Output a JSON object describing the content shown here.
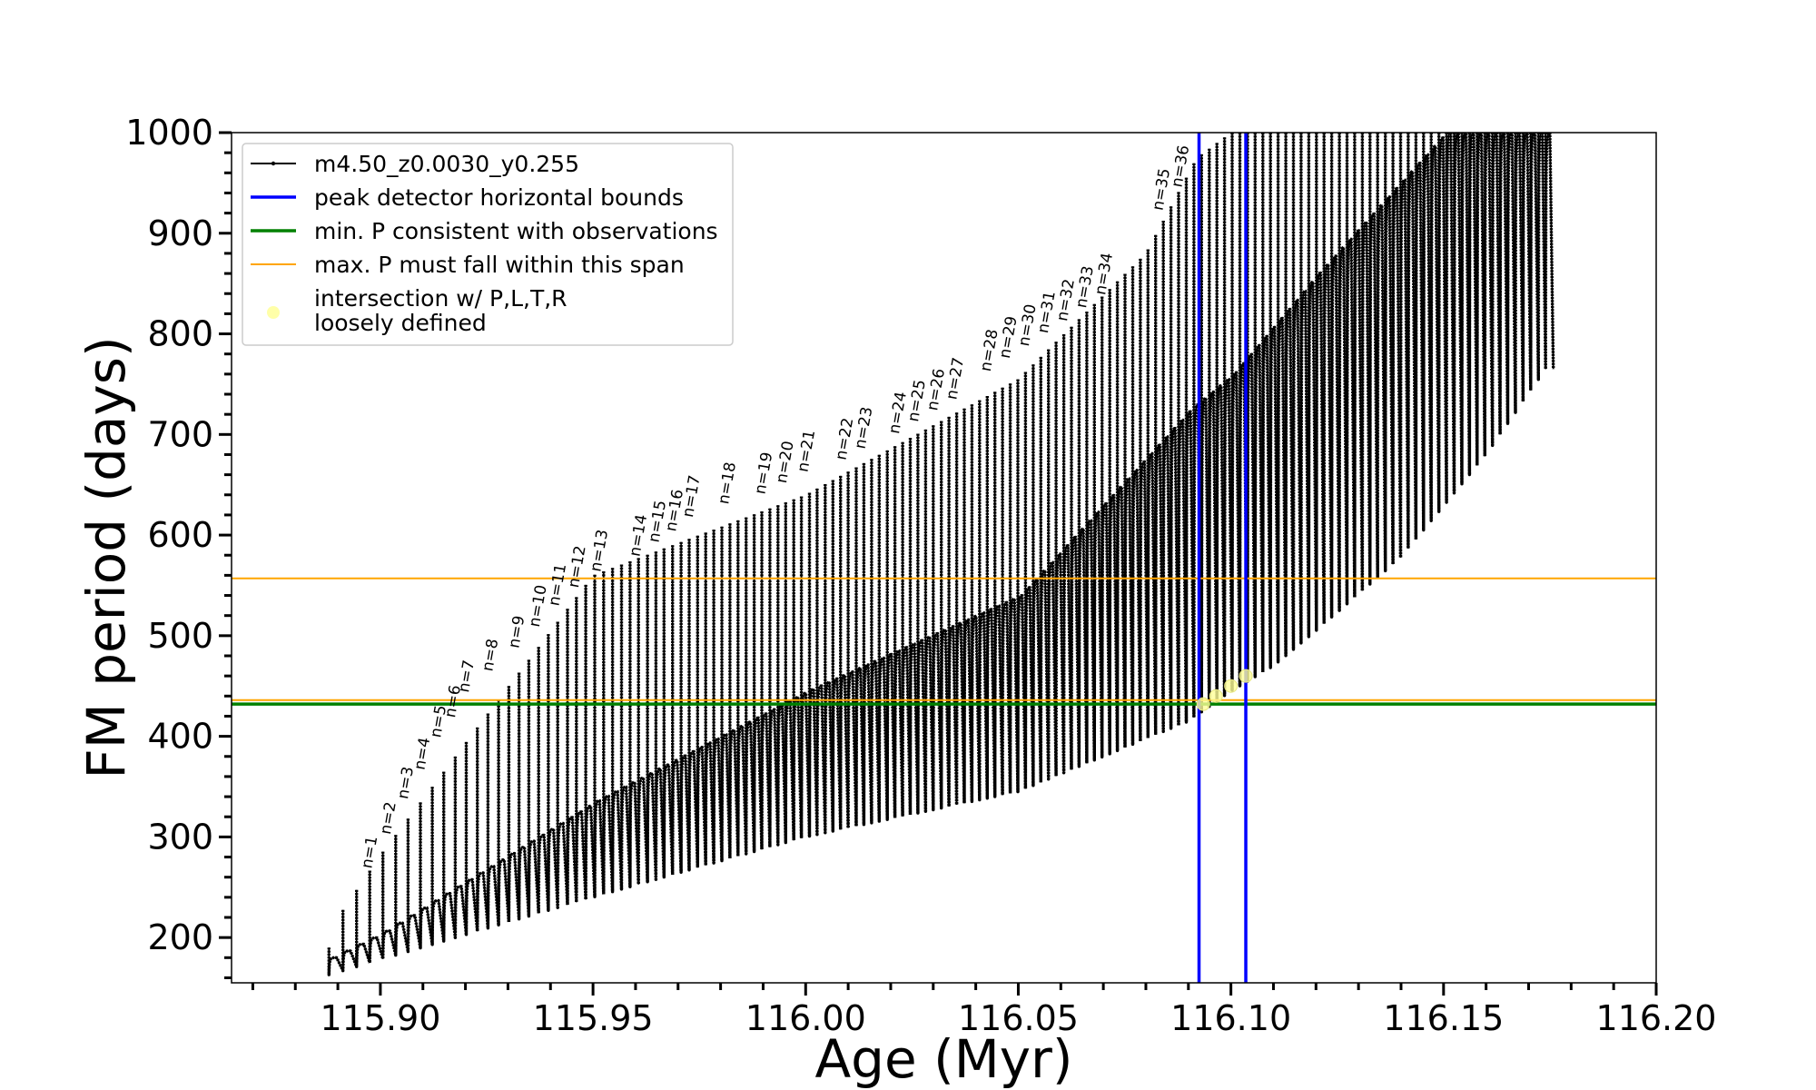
{
  "chart_data": {
    "type": "line",
    "xlabel": "Age (Myr)",
    "ylabel": "FM period (days)",
    "xlim": [
      115.865,
      116.2
    ],
    "ylim": [
      155,
      1000
    ],
    "x_ticks": [
      115.9,
      115.95,
      116.0,
      116.05,
      116.1,
      116.15,
      116.2
    ],
    "x_tick_labels": [
      "115.90",
      "115.95",
      "116.00",
      "116.05",
      "116.10",
      "116.15",
      "116.20"
    ],
    "x_minor_step": 0.01,
    "y_ticks": [
      200,
      300,
      400,
      500,
      600,
      700,
      800,
      900,
      1000
    ],
    "y_tick_labels": [
      "200",
      "300",
      "400",
      "500",
      "600",
      "700",
      "800",
      "900",
      "1000"
    ],
    "y_minor_step": 20,
    "grid": false,
    "legend_position": "top-left",
    "legend": [
      {
        "label": "m4.50_z0.0030_y0.255",
        "color": "#000000",
        "style": "line-marker"
      },
      {
        "label": "peak detector horizontal bounds",
        "color": "#0000ff",
        "style": "line"
      },
      {
        "label": "min. P consistent with observations",
        "color": "#008000",
        "style": "line"
      },
      {
        "label": "max. P must fall within this span",
        "color": "#ffa500",
        "style": "thin-line"
      },
      {
        "label": "intersection w/ P,L,T,R",
        "label_line2": "loosely defined",
        "color": "#ffff99",
        "style": "marker"
      }
    ],
    "series_track": {
      "name": "m4.50_z0.0030_y0.255",
      "color": "#000000",
      "pulse_start_ages": [
        115.8879,
        115.8912,
        115.8944,
        115.8975,
        115.9006,
        115.9036,
        115.9065,
        115.9094,
        115.9122,
        115.9149,
        115.9176,
        115.9202,
        115.9228,
        115.9253,
        115.9278,
        115.9302,
        115.9326,
        115.9349,
        115.9372,
        115.9395,
        115.9417,
        115.944,
        115.9461,
        115.9483,
        115.9504,
        115.9525,
        115.9546,
        115.9567,
        115.9587,
        115.9607,
        115.9628,
        115.9648,
        115.9667,
        115.9687,
        115.9707,
        115.9726,
        115.9746,
        115.9765,
        115.9784,
        115.9803,
        115.9822,
        115.9841,
        115.986,
        115.9879,
        115.9897,
        115.9916,
        115.9935,
        115.9953,
        115.9972,
        115.999,
        116.0009,
        116.0027,
        116.0046,
        116.0064,
        116.0082,
        116.01,
        116.0119,
        116.0137,
        116.0155,
        116.0173,
        116.0192,
        116.021,
        116.0228,
        116.0246,
        116.0264,
        116.0282,
        116.03,
        116.0319,
        116.0337,
        116.0355,
        116.0373,
        116.0391,
        116.0409,
        116.0427,
        116.0445,
        116.0463,
        116.0481,
        116.0499,
        116.0517,
        116.0535,
        116.0553,
        116.0571,
        116.0589,
        116.0607,
        116.0625,
        116.0643,
        116.0661,
        116.0679,
        116.0697,
        116.0715,
        116.0733,
        116.0751,
        116.0769,
        116.0787,
        116.0805,
        116.0823,
        116.0841,
        116.0859,
        116.0877,
        116.0895,
        116.0913,
        116.0931,
        116.0949,
        116.0967,
        116.0985,
        116.1003,
        116.1021,
        116.1039,
        116.1057,
        116.1075,
        116.1093,
        116.1111,
        116.1129,
        116.1147,
        116.1165,
        116.1183,
        116.1201,
        116.1219,
        116.1237,
        116.1255,
        116.1273,
        116.1291,
        116.1309,
        116.1327,
        116.1345,
        116.1363,
        116.1381,
        116.1399,
        116.1417,
        116.1435,
        116.1453,
        116.1471,
        116.1489,
        116.1507,
        116.1525,
        116.1543,
        116.1561,
        116.1579,
        116.1597,
        116.1615,
        116.1633,
        116.1651,
        116.1669,
        116.1687,
        116.1705,
        116.1723,
        116.174
      ],
      "envelope_low": [
        [
          115.888,
          163
        ],
        [
          115.9,
          178
        ],
        [
          115.95,
          240
        ],
        [
          116.0,
          300
        ],
        [
          116.05,
          345
        ],
        [
          116.09,
          415
        ],
        [
          116.1,
          445
        ],
        [
          116.11,
          470
        ],
        [
          116.12,
          505
        ],
        [
          116.14,
          578
        ],
        [
          116.16,
          680
        ],
        [
          116.174,
          765
        ]
      ],
      "envelope_mid": [
        [
          115.888,
          180
        ],
        [
          115.9,
          205
        ],
        [
          115.95,
          335
        ],
        [
          116.0,
          445
        ],
        [
          116.05,
          540
        ],
        [
          116.09,
          725
        ],
        [
          116.1,
          760
        ],
        [
          116.12,
          860
        ],
        [
          116.15,
          1000
        ]
      ],
      "peak_top": [
        [
          115.888,
          190
        ],
        [
          115.89,
          220
        ],
        [
          115.9,
          282
        ],
        [
          115.95,
          560
        ],
        [
          116.0,
          640
        ],
        [
          116.05,
          755
        ],
        [
          116.08,
          880
        ],
        [
          116.092,
          975
        ],
        [
          116.1,
          1000
        ],
        [
          116.175,
          1000
        ]
      ]
    },
    "vlines": [
      {
        "x": 116.0925,
        "color": "#0000ff"
      },
      {
        "x": 116.1035,
        "color": "#0000ff"
      }
    ],
    "hlines": [
      {
        "y": 432,
        "color": "#008000"
      },
      {
        "y": 436,
        "color": "#ffa500"
      },
      {
        "y": 557,
        "color": "#ffa500"
      }
    ],
    "intersection_points": [
      [
        116.0935,
        432
      ],
      [
        116.0965,
        440
      ],
      [
        116.1,
        450
      ],
      [
        116.1035,
        460
      ]
    ],
    "annotations": [
      {
        "text": "n=1",
        "x": 115.8979,
        "y": 268
      },
      {
        "text": "n=2",
        "x": 115.9023,
        "y": 302
      },
      {
        "text": "n=3",
        "x": 115.9064,
        "y": 337
      },
      {
        "text": "n=4",
        "x": 115.9103,
        "y": 366
      },
      {
        "text": "n=5",
        "x": 115.9141,
        "y": 398
      },
      {
        "text": "n=6",
        "x": 115.9175,
        "y": 418
      },
      {
        "text": "n=7",
        "x": 115.9207,
        "y": 443
      },
      {
        "text": "n=8",
        "x": 115.9263,
        "y": 464
      },
      {
        "text": "n=9",
        "x": 115.9325,
        "y": 487
      },
      {
        "text": "n=10",
        "x": 115.9373,
        "y": 508
      },
      {
        "text": "n=11",
        "x": 115.9419,
        "y": 529
      },
      {
        "text": "n=12",
        "x": 115.9465,
        "y": 547
      },
      {
        "text": "n=13",
        "x": 115.9517,
        "y": 563
      },
      {
        "text": "n=14",
        "x": 115.9609,
        "y": 578
      },
      {
        "text": "n=15",
        "x": 115.9654,
        "y": 592
      },
      {
        "text": "n=16",
        "x": 115.9694,
        "y": 603
      },
      {
        "text": "n=17",
        "x": 115.9734,
        "y": 617
      },
      {
        "text": "n=18",
        "x": 115.9818,
        "y": 630
      },
      {
        "text": "n=19",
        "x": 115.9904,
        "y": 640
      },
      {
        "text": "n=20",
        "x": 115.9954,
        "y": 651
      },
      {
        "text": "n=21",
        "x": 116.0004,
        "y": 662
      },
      {
        "text": "n=22",
        "x": 116.0094,
        "y": 674
      },
      {
        "text": "n=23",
        "x": 116.0139,
        "y": 685
      },
      {
        "text": "n=24",
        "x": 116.0219,
        "y": 700
      },
      {
        "text": "n=25",
        "x": 116.0264,
        "y": 712
      },
      {
        "text": "n=26",
        "x": 116.0309,
        "y": 723
      },
      {
        "text": "n=27",
        "x": 116.0354,
        "y": 734
      },
      {
        "text": "n=28",
        "x": 116.0434,
        "y": 762
      },
      {
        "text": "n=29",
        "x": 116.0479,
        "y": 775
      },
      {
        "text": "n=30",
        "x": 116.0524,
        "y": 787
      },
      {
        "text": "n=31",
        "x": 116.0569,
        "y": 800
      },
      {
        "text": "n=32",
        "x": 116.0614,
        "y": 812
      },
      {
        "text": "n=33",
        "x": 116.0659,
        "y": 825
      },
      {
        "text": "n=34",
        "x": 116.0704,
        "y": 838
      },
      {
        "text": "n=35",
        "x": 116.0839,
        "y": 922
      },
      {
        "text": "n=36",
        "x": 116.0884,
        "y": 945
      }
    ]
  }
}
